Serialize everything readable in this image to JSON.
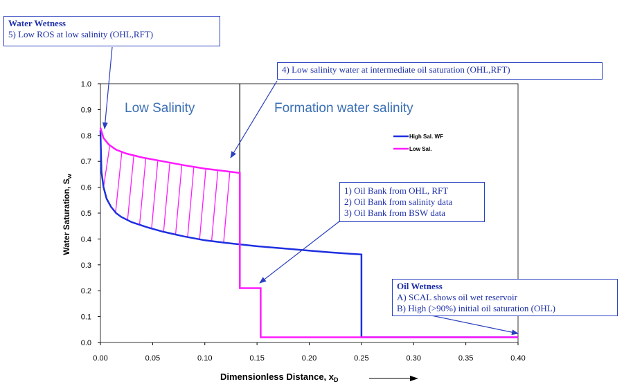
{
  "chart_data": {
    "type": "line",
    "xlabel": "Dimensionless Distance, x",
    "xlabel_sub": "D",
    "ylabel": "Water Saturation, S",
    "ylabel_sub": "w",
    "xlim": [
      0,
      0.4
    ],
    "ylim": [
      0,
      1.0
    ],
    "x_ticks": [
      "0.00",
      "0.05",
      "0.10",
      "0.15",
      "0.20",
      "0.25",
      "0.30",
      "0.35",
      "0.40"
    ],
    "y_ticks": [
      "0.0",
      "0.1",
      "0.2",
      "0.3",
      "0.4",
      "0.5",
      "0.6",
      "0.7",
      "0.8",
      "0.9",
      "1.0"
    ],
    "grid": false,
    "legend_position": "upper-right-inside",
    "series": [
      {
        "name": "High Sal. WF",
        "color": "#1f2fe0",
        "points": [
          [
            0.0,
            0.82
          ],
          [
            0.001,
            0.66
          ],
          [
            0.003,
            0.6
          ],
          [
            0.006,
            0.555
          ],
          [
            0.01,
            0.525
          ],
          [
            0.015,
            0.5
          ],
          [
            0.02,
            0.485
          ],
          [
            0.03,
            0.465
          ],
          [
            0.045,
            0.445
          ],
          [
            0.06,
            0.428
          ],
          [
            0.08,
            0.41
          ],
          [
            0.1,
            0.395
          ],
          [
            0.12,
            0.385
          ],
          [
            0.15,
            0.372
          ],
          [
            0.18,
            0.362
          ],
          [
            0.2,
            0.355
          ],
          [
            0.22,
            0.348
          ],
          [
            0.25,
            0.34
          ],
          [
            0.25,
            0.02
          ],
          [
            0.4,
            0.02
          ]
        ]
      },
      {
        "name": "Low Sal.",
        "color": "#ff1aff",
        "points": [
          [
            0.0,
            0.83
          ],
          [
            0.003,
            0.79
          ],
          [
            0.008,
            0.765
          ],
          [
            0.015,
            0.745
          ],
          [
            0.025,
            0.73
          ],
          [
            0.04,
            0.715
          ],
          [
            0.06,
            0.7
          ],
          [
            0.08,
            0.685
          ],
          [
            0.1,
            0.672
          ],
          [
            0.12,
            0.662
          ],
          [
            0.1335,
            0.655
          ],
          [
            0.1335,
            0.21
          ],
          [
            0.1535,
            0.21
          ],
          [
            0.1535,
            0.02
          ],
          [
            0.4,
            0.02
          ]
        ]
      }
    ],
    "region_labels": [
      "Low Salinity",
      "Formation water salinity"
    ],
    "boundary_x": 0.1335,
    "annotations": [
      {
        "heading": "Water Wetness",
        "lines": [
          "5) Low ROS at low salinity (OHL,RFT)"
        ]
      },
      {
        "heading": "",
        "lines": [
          "4) Low salinity water at intermediate oil saturation (OHL,RFT)"
        ]
      },
      {
        "heading": "",
        "lines": [
          "1) Oil Bank from OHL, RFT",
          "2) Oil Bank from salinity data",
          "3) Oil Bank from BSW data"
        ]
      },
      {
        "heading": "Oil Wetness",
        "lines": [
          "A) SCAL shows oil wet reservoir",
          "B) High (>90%) initial oil saturation (OHL)"
        ]
      }
    ]
  }
}
